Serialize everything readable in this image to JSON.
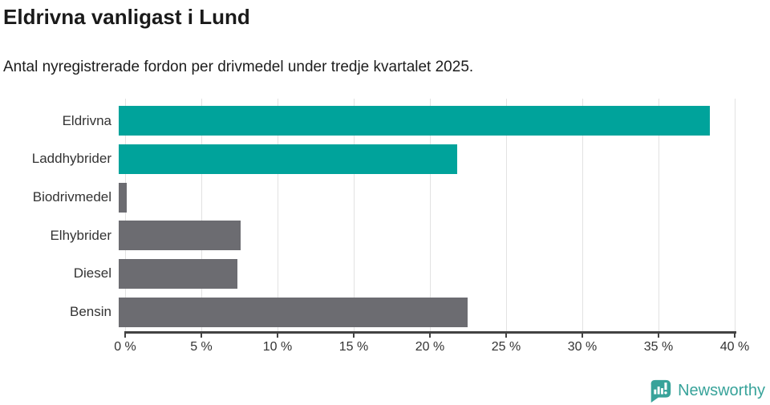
{
  "header": {
    "title": "Eldrivna vanligast i Lund",
    "subtitle": "Antal nyregistrerade fordon per drivmedel under tredje kvartalet 2025."
  },
  "chart_data": {
    "type": "bar",
    "orientation": "horizontal",
    "title": "Eldrivna vanligast i Lund",
    "subtitle": "Antal nyregistrerade fordon per drivmedel under tredje kvartalet 2025.",
    "categories": [
      "Eldrivna",
      "Laddhybrider",
      "Biodrivmedel",
      "Elhybrider",
      "Diesel",
      "Bensin"
    ],
    "values": [
      38.8,
      22.2,
      0.5,
      8.0,
      7.8,
      22.9
    ],
    "unit": "%",
    "xlim": [
      0,
      40
    ],
    "x_ticks": [
      0,
      5,
      10,
      15,
      20,
      25,
      30,
      35,
      40
    ],
    "x_tick_labels": [
      "0 %",
      "5 %",
      "10 %",
      "15 %",
      "20 %",
      "25 %",
      "30 %",
      "35 %",
      "40 %"
    ],
    "bar_colors": [
      "#00a39b",
      "#00a39b",
      "#6c6c71",
      "#6c6c71",
      "#6c6c71",
      "#6c6c71"
    ],
    "highlight_color": "#00a39b",
    "default_color": "#6c6c71",
    "gridline_color": "#e2e2e2",
    "grid": true,
    "legend": false
  },
  "footer": {
    "brand": "Newsworthy",
    "brand_color": "#38a39a",
    "logo_icon": "newsworthy-bubble-chart-icon"
  }
}
